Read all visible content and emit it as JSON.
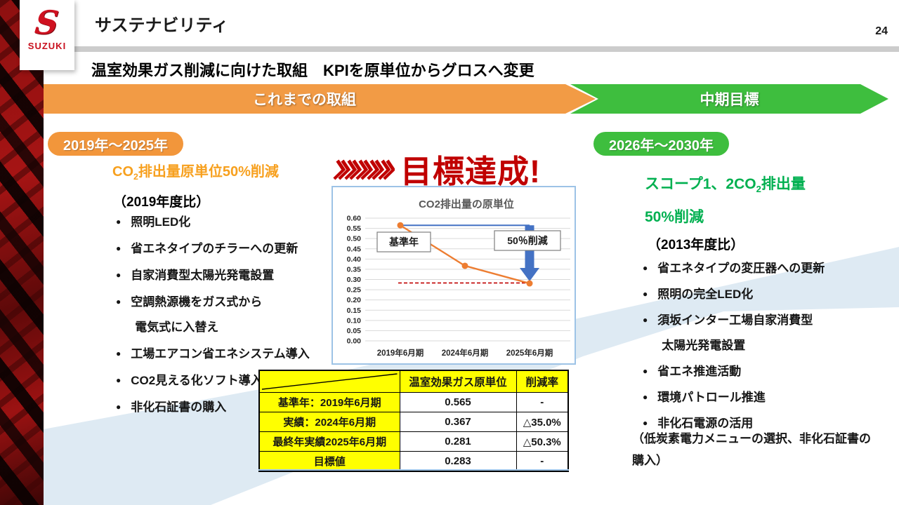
{
  "slide": {
    "title": "サステナビリティ",
    "page_number": "24",
    "subtitle": "温室効果ガス削減に向けた取組　KPIを原単位からグロスへ変更",
    "logo": {
      "brand": "SUZUKI",
      "mark": "S"
    }
  },
  "banners": {
    "past": "これまでの取組",
    "future": "中期目標"
  },
  "left_section": {
    "period_badge": "2019年～2025年",
    "heading": {
      "pre": "CO",
      "sub": "2",
      "post": "排出量原単位50%削減"
    },
    "basis": "（2019年度比）",
    "bullets": [
      {
        "text": "照明LED化"
      },
      {
        "text": "省エネタイプのチラーへの更新"
      },
      {
        "text": "自家消費型太陽光発電設置"
      },
      {
        "text": "空調熱源機をガス式から",
        "cont": "電気式に入替え"
      },
      {
        "text": "工場エアコン省エネシステム導入"
      },
      {
        "text": "CO2見える化ソフト導入"
      },
      {
        "text": "非化石証書の購入"
      }
    ]
  },
  "achievement": {
    "chevrons_icon": "double-chevron-right-x5",
    "text": "目標達成!"
  },
  "chart_data": {
    "type": "line",
    "title": "CO2排出量の原単位",
    "categories": [
      "2019年6月期",
      "2024年6月期",
      "2025年6月期"
    ],
    "series": [
      {
        "name": "CO2排出量の原単位",
        "values": [
          0.565,
          0.367,
          0.281
        ]
      }
    ],
    "ylim": [
      0.0,
      0.6
    ],
    "ytick_step": 0.05,
    "grid": true,
    "legend": "none",
    "target_value": 0.283,
    "annotations": [
      {
        "label": "基準年",
        "target": "first-point"
      },
      {
        "label": "50％削減",
        "target": "arrow-to-last-point"
      }
    ],
    "line_color": "#ED7D31",
    "arrow_color": "#4472C4",
    "target_line_color": "#C00000"
  },
  "table": {
    "headers": [
      "",
      "温室効果ガス原単位",
      "削減率"
    ],
    "rows": [
      [
        "基準年：2019年6月期",
        "0.565",
        "-"
      ],
      [
        "実績：2024年6月期",
        "0.367",
        "△35.0%"
      ],
      [
        "最終年実績2025年6月期",
        "0.281",
        "△50.3%"
      ],
      [
        "目標値",
        "0.283",
        "-"
      ]
    ]
  },
  "right_section": {
    "period_badge": "2026年～2030年",
    "heading_line1": {
      "pre": "スコープ1、2CO",
      "sub": "2",
      "post": "排出量"
    },
    "heading_line2": "50%削減",
    "basis": "（2013年度比）",
    "bullets": [
      {
        "text": "省エネタイプの変圧器への更新"
      },
      {
        "text": "照明の完全LED化"
      },
      {
        "text": "須坂インター工場自家消費型",
        "cont": "太陽光発電設置"
      },
      {
        "text": "省エネ推進活動"
      },
      {
        "text": "環境パトロール推進"
      },
      {
        "text": "非化石電源の活用"
      }
    ],
    "note": "（低炭素電力メニューの選択、非化石証書の購入）"
  },
  "colors": {
    "suzuki_red": "#CF1120",
    "accent_orange": "#F2963B",
    "heading_orange": "#F7A01E",
    "accent_green": "#3EBE3E",
    "heading_green": "#00B050",
    "alert_red": "#C00000",
    "swoosh_blue": "#DEEAF3",
    "table_yellow": "#FFFF00",
    "chart_border_blue": "#9DC3E6"
  }
}
